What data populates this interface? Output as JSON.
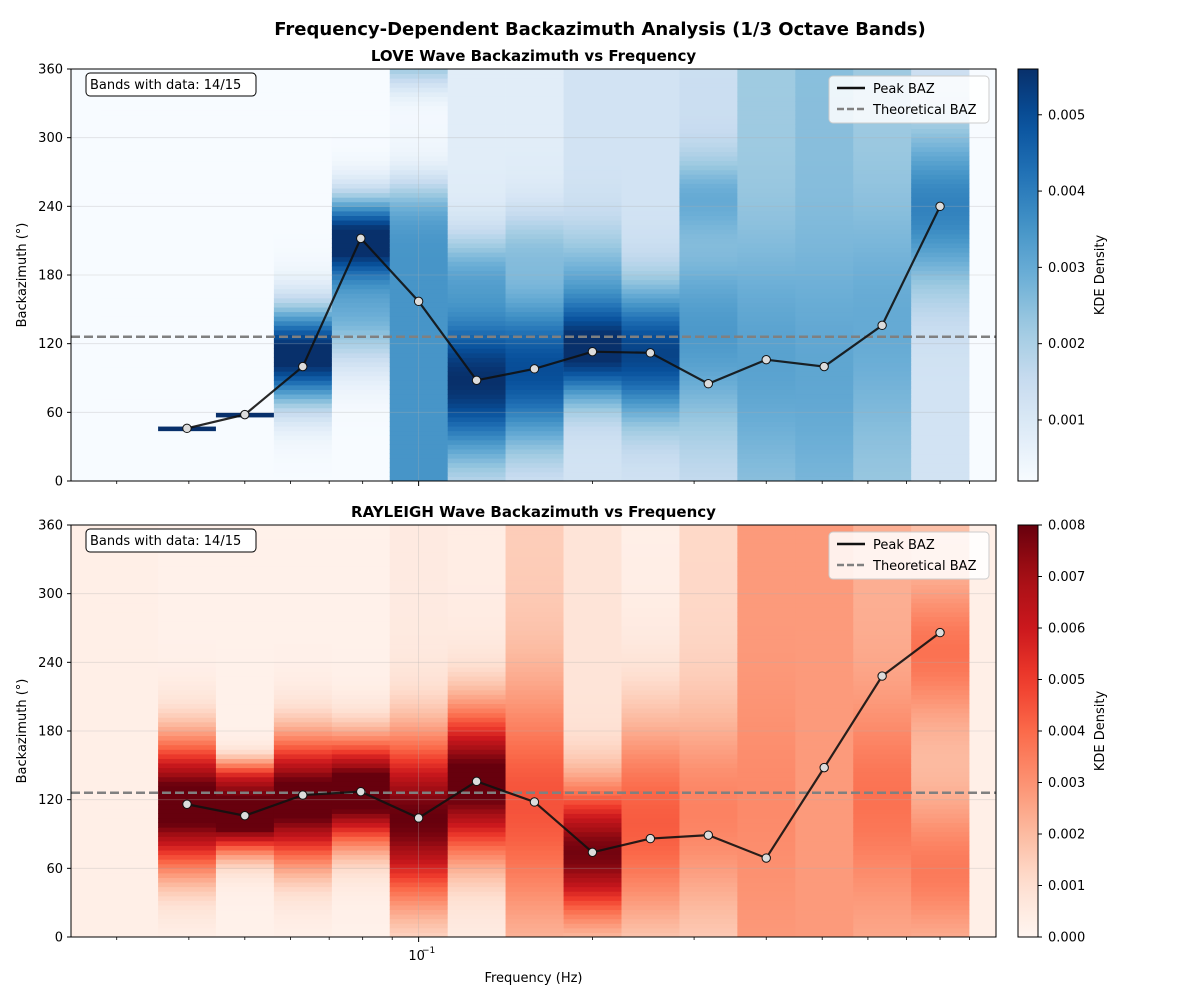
{
  "title": "Frequency-Dependent Backazimuth Analysis (1/3 Octave Bands)",
  "chart_data": [
    {
      "type": "heatmap",
      "title": "LOVE Wave Backazimuth vs Frequency",
      "ylabel": "Backazimuth (°)",
      "xlabel": "",
      "xscale": "log",
      "ylim": [
        0,
        360
      ],
      "yticks": [
        "0",
        "60",
        "120",
        "180",
        "240",
        "300",
        "360"
      ],
      "xtick_label": "",
      "annotation": "Bands with data: 14/15",
      "theoretical_baz": 126,
      "legend": {
        "peak": "Peak BAZ",
        "theoretical": "Theoretical BAZ",
        "placement": "top-right"
      },
      "colormap": "Blues",
      "colorbar": {
        "label": "KDE Density",
        "min": 0.0002,
        "max": 0.0056,
        "ticks": [
          "0.001",
          "0.002",
          "0.003",
          "0.004",
          "0.005"
        ],
        "tick_values": [
          0.001,
          0.002,
          0.003,
          0.004,
          0.005
        ]
      },
      "bands": [
        {
          "f": 0.0315,
          "peak": null,
          "bg": 0.0002,
          "blobs": []
        },
        {
          "f": 0.0397,
          "peak": 46,
          "bg": 0.0002,
          "blobs": [
            {
              "c": 46,
              "w": 0.8,
              "a": 0.0056
            }
          ]
        },
        {
          "f": 0.05,
          "peak": 58,
          "bg": 0.0002,
          "blobs": [
            {
              "c": 58,
              "w": 0.8,
              "a": 0.0056
            }
          ]
        },
        {
          "f": 0.063,
          "peak": 100,
          "bg": 0.0002,
          "blobs": [
            {
              "c": 110,
              "w": 30,
              "a": 0.0056
            }
          ]
        },
        {
          "f": 0.0794,
          "peak": 212,
          "bg": 0.0002,
          "blobs": [
            {
              "c": 212,
              "w": 26,
              "a": 0.0055
            },
            {
              "c": 145,
              "w": 32,
              "a": 0.0025
            }
          ]
        },
        {
          "f": 0.1,
          "peak": 157,
          "bg": 0.0035,
          "blobs": [
            {
              "c": 280,
              "w": 25,
              "a": -0.0025
            },
            {
              "c": 330,
              "w": 25,
              "a": -0.0027
            }
          ]
        },
        {
          "f": 0.126,
          "peak": 88,
          "bg": 0.0008,
          "blobs": [
            {
              "c": 88,
              "w": 50,
              "a": 0.0048
            },
            {
              "c": 185,
              "w": 25,
              "a": 0.0015
            }
          ]
        },
        {
          "f": 0.1587,
          "peak": 98,
          "bg": 0.0008,
          "blobs": [
            {
              "c": 98,
              "w": 50,
              "a": 0.0042
            },
            {
              "c": 205,
              "w": 25,
              "a": 0.0012
            }
          ]
        },
        {
          "f": 0.2,
          "peak": 113,
          "bg": 0.0012,
          "blobs": [
            {
              "c": 113,
              "w": 30,
              "a": 0.0043
            },
            {
              "c": 175,
              "w": 35,
              "a": 0.0015
            }
          ]
        },
        {
          "f": 0.252,
          "peak": 112,
          "bg": 0.0012,
          "blobs": [
            {
              "c": 112,
              "w": 40,
              "a": 0.004
            }
          ]
        },
        {
          "f": 0.3175,
          "peak": 85,
          "bg": 0.0014,
          "blobs": [
            {
              "c": 130,
              "w": 60,
              "a": 0.002
            },
            {
              "c": 250,
              "w": 25,
              "a": 0.0013
            }
          ]
        },
        {
          "f": 0.4,
          "peak": 106,
          "bg": 0.0022,
          "blobs": [
            {
              "c": 110,
              "w": 70,
              "a": 0.001
            }
          ]
        },
        {
          "f": 0.504,
          "peak": 100,
          "bg": 0.0025,
          "blobs": [
            {
              "c": 100,
              "w": 70,
              "a": 0.0006
            }
          ]
        },
        {
          "f": 0.635,
          "peak": 136,
          "bg": 0.0022,
          "blobs": [
            {
              "c": 140,
              "w": 70,
              "a": 0.0008
            }
          ]
        },
        {
          "f": 0.8,
          "peak": 240,
          "bg": 0.0012,
          "blobs": [
            {
              "c": 240,
              "w": 50,
              "a": 0.0027
            }
          ]
        }
      ]
    },
    {
      "type": "heatmap",
      "title": "RAYLEIGH Wave Backazimuth vs Frequency",
      "ylabel": "Backazimuth (°)",
      "xlabel": "Frequency (Hz)",
      "xscale": "log",
      "ylim": [
        0,
        360
      ],
      "yticks": [
        "0",
        "60",
        "120",
        "180",
        "240",
        "300",
        "360"
      ],
      "xtick_label": "10",
      "xtick_exp": "−1",
      "annotation": "Bands with data: 14/15",
      "theoretical_baz": 126,
      "legend": {
        "peak": "Peak BAZ",
        "theoretical": "Theoretical BAZ",
        "placement": "top-right"
      },
      "colormap": "Reds",
      "colorbar": {
        "label": "KDE Density",
        "min": 0.0,
        "max": 0.008,
        "ticks": [
          "0.000",
          "0.001",
          "0.002",
          "0.003",
          "0.004",
          "0.005",
          "0.006",
          "0.007",
          "0.008"
        ],
        "tick_values": [
          0,
          0.001,
          0.002,
          0.003,
          0.004,
          0.005,
          0.006,
          0.007,
          0.008
        ]
      },
      "bands": [
        {
          "f": 0.0315,
          "peak": null,
          "bg": 0.0003,
          "blobs": []
        },
        {
          "f": 0.0397,
          "peak": 116,
          "bg": 0.0002,
          "blobs": [
            {
              "c": 116,
              "w": 40,
              "a": 0.0085
            }
          ]
        },
        {
          "f": 0.05,
          "peak": 106,
          "bg": 0.0002,
          "blobs": [
            {
              "c": 106,
              "w": 22,
              "a": 0.009
            },
            {
              "c": 140,
              "w": 12,
              "a": 0.003
            }
          ]
        },
        {
          "f": 0.063,
          "peak": 124,
          "bg": 0.0002,
          "blobs": [
            {
              "c": 120,
              "w": 38,
              "a": 0.0085
            }
          ]
        },
        {
          "f": 0.0794,
          "peak": 127,
          "bg": 0.0002,
          "blobs": [
            {
              "c": 127,
              "w": 32,
              "a": 0.0088
            }
          ]
        },
        {
          "f": 0.1,
          "peak": 104,
          "bg": 0.0005,
          "blobs": [
            {
              "c": 104,
              "w": 50,
              "a": 0.0075
            }
          ]
        },
        {
          "f": 0.126,
          "peak": 136,
          "bg": 0.0004,
          "blobs": [
            {
              "c": 136,
              "w": 45,
              "a": 0.008
            }
          ]
        },
        {
          "f": 0.1587,
          "peak": 118,
          "bg": 0.0015,
          "blobs": [
            {
              "c": 118,
              "w": 70,
              "a": 0.003
            }
          ]
        },
        {
          "f": 0.2,
          "peak": 74,
          "bg": 0.0008,
          "blobs": [
            {
              "c": 74,
              "w": 40,
              "a": 0.007
            }
          ]
        },
        {
          "f": 0.252,
          "peak": 86,
          "bg": 0.0003,
          "blobs": [
            {
              "c": 100,
              "w": 70,
              "a": 0.004
            }
          ]
        },
        {
          "f": 0.3175,
          "peak": 89,
          "bg": 0.0012,
          "blobs": [
            {
              "c": 110,
              "w": 60,
              "a": 0.0022
            }
          ]
        },
        {
          "f": 0.4,
          "peak": 69,
          "bg": 0.0028,
          "blobs": [
            {
              "c": 120,
              "w": 60,
              "a": 0.0004
            }
          ]
        },
        {
          "f": 0.504,
          "peak": 148,
          "bg": 0.0028,
          "blobs": []
        },
        {
          "f": 0.635,
          "peak": 228,
          "bg": 0.0023,
          "blobs": [
            {
              "c": 120,
              "w": 60,
              "a": 0.0015
            }
          ]
        },
        {
          "f": 0.8,
          "peak": 266,
          "bg": 0.0018,
          "blobs": [
            {
              "c": 250,
              "w": 40,
              "a": 0.002
            },
            {
              "c": 60,
              "w": 40,
              "a": 0.0018
            }
          ]
        }
      ]
    }
  ]
}
